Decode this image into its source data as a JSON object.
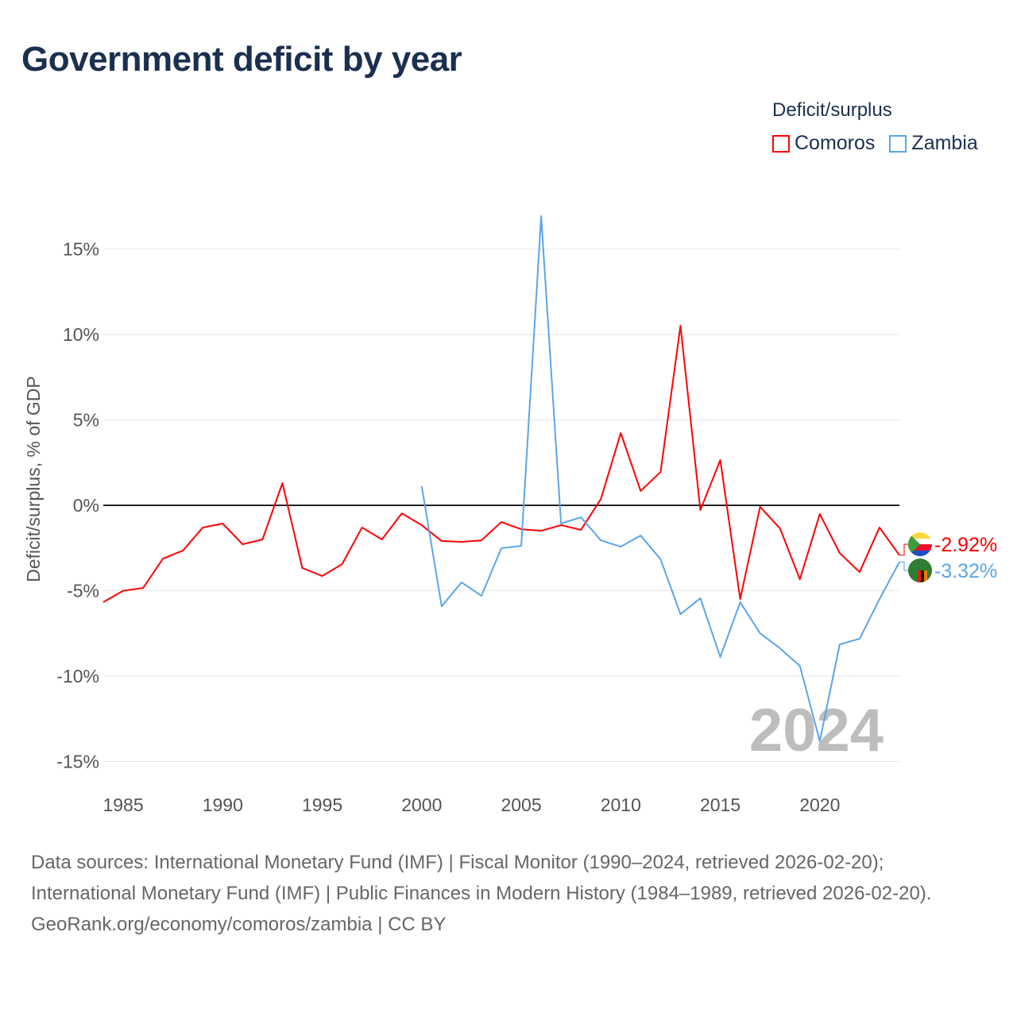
{
  "title": "Government deficit by year",
  "legend": {
    "title": "Deficit/surplus",
    "items": [
      {
        "label": "Comoros",
        "color": "#ff0000"
      },
      {
        "label": "Zambia",
        "color": "#5aa5ea"
      }
    ]
  },
  "year_label": "2024",
  "footer": {
    "sources": "Data sources: International Monetary Fund (IMF) | Fiscal Monitor (1990–2024, retrieved 2026-02-20); International Monetary Fund (IMF) | Public Finances in Modern History (1984–1989, retrieved 2026-02-20).",
    "credit": "GeoRank.org/economy/comoros/zambia | CC BY"
  },
  "chart_data": {
    "type": "line",
    "title": "Government deficit by year",
    "xlabel": "",
    "ylabel": "Deficit/surplus, % of GDP",
    "xlim": [
      1984,
      2024
    ],
    "ylim": [
      -16.5,
      17.5
    ],
    "yticks": [
      -15,
      -10,
      -5,
      0,
      5,
      10,
      15
    ],
    "ytick_labels": [
      "-15%",
      "-10%",
      "-5%",
      "0%",
      "5%",
      "10%",
      "15%"
    ],
    "xticks": [
      1985,
      1990,
      1995,
      2000,
      2005,
      2010,
      2015,
      2020
    ],
    "xtick_labels": [
      "1985",
      "1990",
      "1995",
      "2000",
      "2005",
      "2010",
      "2015",
      "2020"
    ],
    "grid": true,
    "legend_position": "top-right",
    "series": [
      {
        "name": "Comoros",
        "color": "#ff0000",
        "end_label": "-2.92%",
        "x": [
          1984,
          1985,
          1986,
          1987,
          1988,
          1989,
          1990,
          1991,
          1992,
          1993,
          1994,
          1995,
          1996,
          1997,
          1998,
          1999,
          2000,
          2001,
          2002,
          2003,
          2004,
          2005,
          2006,
          2007,
          2008,
          2009,
          2010,
          2011,
          2012,
          2013,
          2014,
          2015,
          2016,
          2017,
          2018,
          2019,
          2020,
          2021,
          2022,
          2023,
          2024
        ],
        "values": [
          -5.67,
          -5.0,
          -4.84,
          -3.12,
          -2.65,
          -1.3,
          -1.07,
          -2.28,
          -2.0,
          1.3,
          -3.67,
          -4.14,
          -3.44,
          -1.3,
          -2.0,
          -0.47,
          -1.16,
          -2.09,
          -2.14,
          -2.05,
          -0.98,
          -1.4,
          -1.49,
          -1.16,
          -1.44,
          0.37,
          4.23,
          0.84,
          1.95,
          10.51,
          -0.28,
          2.65,
          -5.49,
          -0.09,
          -1.35,
          -4.33,
          -0.51,
          -2.79,
          -3.91,
          -1.3,
          -2.92
        ]
      },
      {
        "name": "Zambia",
        "color": "#5aa5ea",
        "end_label": "-3.32%",
        "x": [
          2000,
          2001,
          2002,
          2003,
          2004,
          2005,
          2006,
          2007,
          2008,
          2009,
          2010,
          2011,
          2012,
          2013,
          2014,
          2015,
          2016,
          2017,
          2018,
          2019,
          2020,
          2021,
          2022,
          2023,
          2024
        ],
        "values": [
          1.12,
          -5.91,
          -4.51,
          -5.3,
          -2.51,
          -2.37,
          16.93,
          -1.07,
          -0.7,
          -2.05,
          -2.42,
          -1.77,
          -3.16,
          -6.37,
          -5.44,
          -8.88,
          -5.67,
          -7.49,
          -8.37,
          -9.4,
          -13.81,
          -8.14,
          -7.81,
          -5.49,
          -3.32
        ]
      }
    ]
  }
}
